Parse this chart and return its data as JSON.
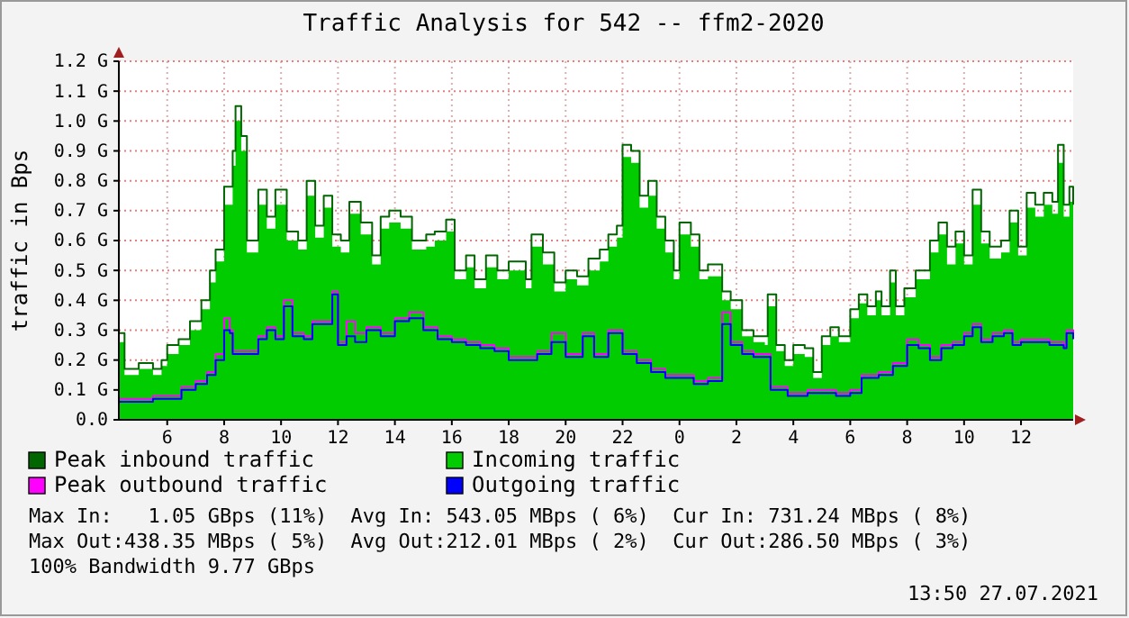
{
  "chart_data": {
    "type": "area",
    "title": "Traffic Analysis for 542 -- ffm2-2020",
    "ylabel": "traffic in Bps",
    "xlim": [
      "2021-07-26T04:18",
      "2021-07-27T13:50"
    ],
    "xticks": [
      {
        "value": "2021-07-26T06:00",
        "label": "6"
      },
      {
        "value": "2021-07-26T08:00",
        "label": "8"
      },
      {
        "value": "2021-07-26T10:00",
        "label": "10"
      },
      {
        "value": "2021-07-26T12:00",
        "label": "12"
      },
      {
        "value": "2021-07-26T14:00",
        "label": "14"
      },
      {
        "value": "2021-07-26T16:00",
        "label": "16"
      },
      {
        "value": "2021-07-26T18:00",
        "label": "18"
      },
      {
        "value": "2021-07-26T20:00",
        "label": "20"
      },
      {
        "value": "2021-07-26T22:00",
        "label": "22"
      },
      {
        "value": "2021-07-27T00:00",
        "label": "0"
      },
      {
        "value": "2021-07-27T02:00",
        "label": "2"
      },
      {
        "value": "2021-07-27T04:00",
        "label": "4"
      },
      {
        "value": "2021-07-27T06:00",
        "label": "6"
      },
      {
        "value": "2021-07-27T08:00",
        "label": "8"
      },
      {
        "value": "2021-07-27T10:00",
        "label": "10"
      },
      {
        "value": "2021-07-27T12:00",
        "label": "12"
      }
    ],
    "ylim": [
      0,
      1.2
    ],
    "yticks": [
      {
        "value": 0,
        "label": "0.0"
      },
      {
        "value": 0.1,
        "label": "0.1 G"
      },
      {
        "value": 0.2,
        "label": "0.2 G"
      },
      {
        "value": 0.3,
        "label": "0.3 G"
      },
      {
        "value": 0.4,
        "label": "0.4 G"
      },
      {
        "value": 0.5,
        "label": "0.5 G"
      },
      {
        "value": 0.6,
        "label": "0.6 G"
      },
      {
        "value": 0.7,
        "label": "0.7 G"
      },
      {
        "value": 0.8,
        "label": "0.8 G"
      },
      {
        "value": 0.9,
        "label": "0.9 G"
      },
      {
        "value": 1.0,
        "label": "1.0 G"
      },
      {
        "value": 1.1,
        "label": "1.1 G"
      },
      {
        "value": 1.2,
        "label": "1.2 G"
      }
    ],
    "grid": true,
    "legend": "bottom",
    "line_style": "solid",
    "marker": "none",
    "x": [
      "2021-07-26T04:18",
      "2021-07-26T04:30",
      "2021-07-26T05:00",
      "2021-07-26T05:30",
      "2021-07-26T05:48",
      "2021-07-26T06:00",
      "2021-07-26T06:24",
      "2021-07-26T06:48",
      "2021-07-26T07:12",
      "2021-07-26T07:30",
      "2021-07-26T07:42",
      "2021-07-26T08:00",
      "2021-07-26T08:18",
      "2021-07-26T08:24",
      "2021-07-26T08:36",
      "2021-07-26T08:48",
      "2021-07-26T09:12",
      "2021-07-26T09:30",
      "2021-07-26T09:48",
      "2021-07-26T10:12",
      "2021-07-26T10:36",
      "2021-07-26T10:54",
      "2021-07-26T11:12",
      "2021-07-26T11:30",
      "2021-07-26T11:48",
      "2021-07-26T12:06",
      "2021-07-26T12:24",
      "2021-07-26T12:48",
      "2021-07-26T13:12",
      "2021-07-26T13:30",
      "2021-07-26T13:48",
      "2021-07-26T14:12",
      "2021-07-26T14:36",
      "2021-07-26T15:06",
      "2021-07-26T15:24",
      "2021-07-26T15:48",
      "2021-07-26T16:06",
      "2021-07-26T16:30",
      "2021-07-26T16:48",
      "2021-07-26T17:12",
      "2021-07-26T17:36",
      "2021-07-26T18:00",
      "2021-07-26T18:36",
      "2021-07-26T18:48",
      "2021-07-26T19:12",
      "2021-07-26T19:36",
      "2021-07-26T20:00",
      "2021-07-26T20:24",
      "2021-07-26T20:48",
      "2021-07-26T21:12",
      "2021-07-26T21:30",
      "2021-07-26T21:48",
      "2021-07-26T22:00",
      "2021-07-26T22:18",
      "2021-07-26T22:36",
      "2021-07-26T22:54",
      "2021-07-26T23:12",
      "2021-07-26T23:30",
      "2021-07-26T23:48",
      "2021-07-27T00:00",
      "2021-07-27T00:24",
      "2021-07-27T00:42",
      "2021-07-27T01:00",
      "2021-07-27T01:30",
      "2021-07-27T01:48",
      "2021-07-27T02:12",
      "2021-07-27T02:36",
      "2021-07-27T03:00",
      "2021-07-27T03:06",
      "2021-07-27T03:24",
      "2021-07-27T03:42",
      "2021-07-27T04:00",
      "2021-07-27T04:24",
      "2021-07-27T04:42",
      "2021-07-27T05:00",
      "2021-07-27T05:18",
      "2021-07-27T05:36",
      "2021-07-27T06:00",
      "2021-07-27T06:18",
      "2021-07-27T06:36",
      "2021-07-27T06:54",
      "2021-07-27T07:06",
      "2021-07-27T07:24",
      "2021-07-27T07:36",
      "2021-07-27T07:54",
      "2021-07-27T08:18",
      "2021-07-27T08:48",
      "2021-07-27T09:06",
      "2021-07-27T09:24",
      "2021-07-27T09:42",
      "2021-07-27T10:00",
      "2021-07-27T10:18",
      "2021-07-27T10:36",
      "2021-07-27T10:54",
      "2021-07-27T11:18",
      "2021-07-27T11:36",
      "2021-07-27T11:54",
      "2021-07-27T12:12",
      "2021-07-27T12:30",
      "2021-07-27T12:48",
      "2021-07-27T13:06",
      "2021-07-27T13:18",
      "2021-07-27T13:30",
      "2021-07-27T13:42",
      "2021-07-27T13:50"
    ],
    "series": [
      {
        "name": "Peak inbound traffic",
        "type": "step",
        "color": "#006600",
        "values": [
          0.29,
          0.17,
          0.19,
          0.17,
          0.2,
          0.25,
          0.27,
          0.33,
          0.4,
          0.5,
          0.57,
          0.78,
          0.9,
          1.05,
          0.95,
          0.6,
          0.77,
          0.68,
          0.77,
          0.63,
          0.6,
          0.8,
          0.65,
          0.75,
          0.62,
          0.6,
          0.73,
          0.66,
          0.55,
          0.68,
          0.7,
          0.68,
          0.6,
          0.62,
          0.63,
          0.67,
          0.5,
          0.55,
          0.47,
          0.55,
          0.5,
          0.53,
          0.47,
          0.62,
          0.56,
          0.46,
          0.5,
          0.48,
          0.54,
          0.57,
          0.62,
          0.65,
          0.92,
          0.9,
          0.75,
          0.8,
          0.68,
          0.6,
          0.5,
          0.66,
          0.62,
          0.5,
          0.52,
          0.43,
          0.4,
          0.3,
          0.28,
          0.28,
          0.42,
          0.25,
          0.2,
          0.25,
          0.24,
          0.16,
          0.28,
          0.31,
          0.28,
          0.37,
          0.42,
          0.38,
          0.43,
          0.38,
          0.5,
          0.38,
          0.44,
          0.5,
          0.6,
          0.66,
          0.58,
          0.63,
          0.55,
          0.77,
          0.63,
          0.58,
          0.6,
          0.7,
          0.58,
          0.76,
          0.72,
          0.76,
          0.73,
          0.92,
          0.72,
          0.78,
          0.72
        ]
      },
      {
        "name": "Incoming traffic",
        "color": "#00cc00",
        "values": [
          0.26,
          0.15,
          0.17,
          0.15,
          0.18,
          0.22,
          0.25,
          0.3,
          0.37,
          0.46,
          0.53,
          0.72,
          0.85,
          1.0,
          0.9,
          0.56,
          0.72,
          0.64,
          0.72,
          0.6,
          0.57,
          0.75,
          0.61,
          0.71,
          0.58,
          0.56,
          0.69,
          0.62,
          0.52,
          0.64,
          0.66,
          0.64,
          0.57,
          0.58,
          0.6,
          0.63,
          0.47,
          0.51,
          0.44,
          0.51,
          0.47,
          0.5,
          0.44,
          0.58,
          0.52,
          0.43,
          0.47,
          0.45,
          0.5,
          0.53,
          0.58,
          0.61,
          0.88,
          0.86,
          0.71,
          0.75,
          0.64,
          0.56,
          0.47,
          0.62,
          0.58,
          0.47,
          0.48,
          0.4,
          0.37,
          0.28,
          0.26,
          0.25,
          0.38,
          0.23,
          0.18,
          0.22,
          0.21,
          0.14,
          0.25,
          0.28,
          0.26,
          0.34,
          0.39,
          0.35,
          0.4,
          0.35,
          0.46,
          0.35,
          0.41,
          0.47,
          0.56,
          0.62,
          0.52,
          0.59,
          0.52,
          0.72,
          0.59,
          0.54,
          0.56,
          0.66,
          0.55,
          0.71,
          0.68,
          0.72,
          0.69,
          0.86,
          0.68,
          0.73,
          0.68
        ]
      },
      {
        "name": "Peak outbound traffic",
        "type": "step",
        "color": "#ff00ff",
        "x": [
          "2021-07-26T04:18",
          "2021-07-26T05:00",
          "2021-07-26T05:30",
          "2021-07-26T06:00",
          "2021-07-26T06:30",
          "2021-07-26T07:00",
          "2021-07-26T07:24",
          "2021-07-26T07:42",
          "2021-07-26T08:00",
          "2021-07-26T08:12",
          "2021-07-26T08:18",
          "2021-07-26T08:48",
          "2021-07-26T09:12",
          "2021-07-26T09:30",
          "2021-07-26T09:48",
          "2021-07-26T10:06",
          "2021-07-26T10:24",
          "2021-07-26T10:48",
          "2021-07-26T11:06",
          "2021-07-26T11:30",
          "2021-07-26T11:48",
          "2021-07-26T12:00",
          "2021-07-26T12:18",
          "2021-07-26T12:36",
          "2021-07-26T13:00",
          "2021-07-26T13:30",
          "2021-07-26T14:00",
          "2021-07-26T14:30",
          "2021-07-26T15:00",
          "2021-07-26T15:30",
          "2021-07-26T16:00",
          "2021-07-26T16:30",
          "2021-07-26T17:00",
          "2021-07-26T17:30",
          "2021-07-26T18:00",
          "2021-07-26T18:30",
          "2021-07-26T19:00",
          "2021-07-26T19:30",
          "2021-07-26T20:00",
          "2021-07-26T20:36",
          "2021-07-26T21:00",
          "2021-07-26T21:30",
          "2021-07-26T22:00",
          "2021-07-26T22:30",
          "2021-07-26T23:00",
          "2021-07-26T23:30",
          "2021-07-27T00:00",
          "2021-07-27T00:30",
          "2021-07-27T01:00",
          "2021-07-27T01:30",
          "2021-07-27T01:48",
          "2021-07-27T02:12",
          "2021-07-27T02:36",
          "2021-07-27T03:06",
          "2021-07-27T03:12",
          "2021-07-27T03:48",
          "2021-07-27T04:30",
          "2021-07-27T05:00",
          "2021-07-27T05:30",
          "2021-07-27T06:00",
          "2021-07-27T06:24",
          "2021-07-27T07:00",
          "2021-07-27T07:30",
          "2021-07-27T08:00",
          "2021-07-27T08:24",
          "2021-07-27T08:48",
          "2021-07-27T09:12",
          "2021-07-27T09:36",
          "2021-07-27T10:00",
          "2021-07-27T10:18",
          "2021-07-27T10:36",
          "2021-07-27T11:00",
          "2021-07-27T11:24",
          "2021-07-27T11:42",
          "2021-07-27T12:00",
          "2021-07-27T12:30",
          "2021-07-27T13:00",
          "2021-07-27T13:30",
          "2021-07-27T13:36",
          "2021-07-27T13:50"
        ],
        "values": [
          0.07,
          0.07,
          0.08,
          0.08,
          0.11,
          0.13,
          0.16,
          0.22,
          0.34,
          0.3,
          0.23,
          0.23,
          0.28,
          0.31,
          0.28,
          0.4,
          0.29,
          0.28,
          0.33,
          0.33,
          0.43,
          0.26,
          0.33,
          0.29,
          0.31,
          0.29,
          0.34,
          0.36,
          0.31,
          0.28,
          0.27,
          0.26,
          0.25,
          0.24,
          0.21,
          0.21,
          0.23,
          0.29,
          0.22,
          0.29,
          0.22,
          0.3,
          0.23,
          0.2,
          0.17,
          0.15,
          0.15,
          0.13,
          0.14,
          0.36,
          0.26,
          0.23,
          0.22,
          0.22,
          0.11,
          0.09,
          0.1,
          0.1,
          0.09,
          0.1,
          0.15,
          0.16,
          0.19,
          0.27,
          0.25,
          0.21,
          0.25,
          0.26,
          0.29,
          0.32,
          0.27,
          0.29,
          0.3,
          0.26,
          0.27,
          0.27,
          0.26,
          0.25,
          0.3,
          0.28
        ]
      },
      {
        "name": "Outgoing traffic",
        "type": "step",
        "color": "#0000ff",
        "x": [
          "2021-07-26T04:18",
          "2021-07-26T05:00",
          "2021-07-26T05:30",
          "2021-07-26T06:00",
          "2021-07-26T06:30",
          "2021-07-26T07:00",
          "2021-07-26T07:24",
          "2021-07-26T07:42",
          "2021-07-26T08:00",
          "2021-07-26T08:12",
          "2021-07-26T08:18",
          "2021-07-26T08:48",
          "2021-07-26T09:12",
          "2021-07-26T09:30",
          "2021-07-26T09:48",
          "2021-07-26T10:06",
          "2021-07-26T10:24",
          "2021-07-26T10:48",
          "2021-07-26T11:06",
          "2021-07-26T11:30",
          "2021-07-26T11:48",
          "2021-07-26T12:00",
          "2021-07-26T12:18",
          "2021-07-26T12:36",
          "2021-07-26T13:00",
          "2021-07-26T13:30",
          "2021-07-26T14:00",
          "2021-07-26T14:30",
          "2021-07-26T15:00",
          "2021-07-26T15:30",
          "2021-07-26T16:00",
          "2021-07-26T16:30",
          "2021-07-26T17:00",
          "2021-07-26T17:30",
          "2021-07-26T18:00",
          "2021-07-26T18:30",
          "2021-07-26T19:00",
          "2021-07-26T19:30",
          "2021-07-26T20:00",
          "2021-07-26T20:36",
          "2021-07-26T21:00",
          "2021-07-26T21:30",
          "2021-07-26T22:00",
          "2021-07-26T22:30",
          "2021-07-26T23:00",
          "2021-07-26T23:30",
          "2021-07-27T00:00",
          "2021-07-27T00:30",
          "2021-07-27T01:00",
          "2021-07-27T01:30",
          "2021-07-27T01:48",
          "2021-07-27T02:12",
          "2021-07-27T02:36",
          "2021-07-27T03:06",
          "2021-07-27T03:12",
          "2021-07-27T03:48",
          "2021-07-27T04:30",
          "2021-07-27T05:00",
          "2021-07-27T05:30",
          "2021-07-27T06:00",
          "2021-07-27T06:24",
          "2021-07-27T07:00",
          "2021-07-27T07:30",
          "2021-07-27T08:00",
          "2021-07-27T08:24",
          "2021-07-27T08:48",
          "2021-07-27T09:12",
          "2021-07-27T09:36",
          "2021-07-27T10:00",
          "2021-07-27T10:18",
          "2021-07-27T10:36",
          "2021-07-27T11:00",
          "2021-07-27T11:24",
          "2021-07-27T11:42",
          "2021-07-27T12:00",
          "2021-07-27T12:30",
          "2021-07-27T13:00",
          "2021-07-27T13:30",
          "2021-07-27T13:36",
          "2021-07-27T13:50"
        ],
        "values": [
          0.06,
          0.06,
          0.07,
          0.07,
          0.1,
          0.12,
          0.15,
          0.2,
          0.3,
          0.29,
          0.22,
          0.22,
          0.27,
          0.3,
          0.27,
          0.38,
          0.28,
          0.27,
          0.32,
          0.32,
          0.42,
          0.25,
          0.28,
          0.26,
          0.3,
          0.28,
          0.33,
          0.34,
          0.3,
          0.27,
          0.26,
          0.25,
          0.24,
          0.23,
          0.2,
          0.2,
          0.22,
          0.26,
          0.21,
          0.28,
          0.21,
          0.29,
          0.22,
          0.19,
          0.16,
          0.14,
          0.14,
          0.12,
          0.13,
          0.32,
          0.25,
          0.22,
          0.21,
          0.21,
          0.1,
          0.08,
          0.09,
          0.09,
          0.08,
          0.09,
          0.14,
          0.15,
          0.18,
          0.25,
          0.24,
          0.2,
          0.24,
          0.25,
          0.28,
          0.31,
          0.26,
          0.28,
          0.29,
          0.25,
          0.26,
          0.26,
          0.25,
          0.24,
          0.29,
          0.27
        ]
      }
    ],
    "annotations": [
      "Max In:   1.05 GBps (11%)  Avg In: 543.05 MBps ( 6%)  Cur In: 731.24 MBps ( 8%)",
      "Max Out:438.35 MBps ( 5%)  Avg Out:212.01 MBps ( 2%)  Cur Out:286.50 MBps ( 3%)",
      "100% Bandwidth 9.77 GBps",
      "13:50 27.07.2021"
    ]
  }
}
